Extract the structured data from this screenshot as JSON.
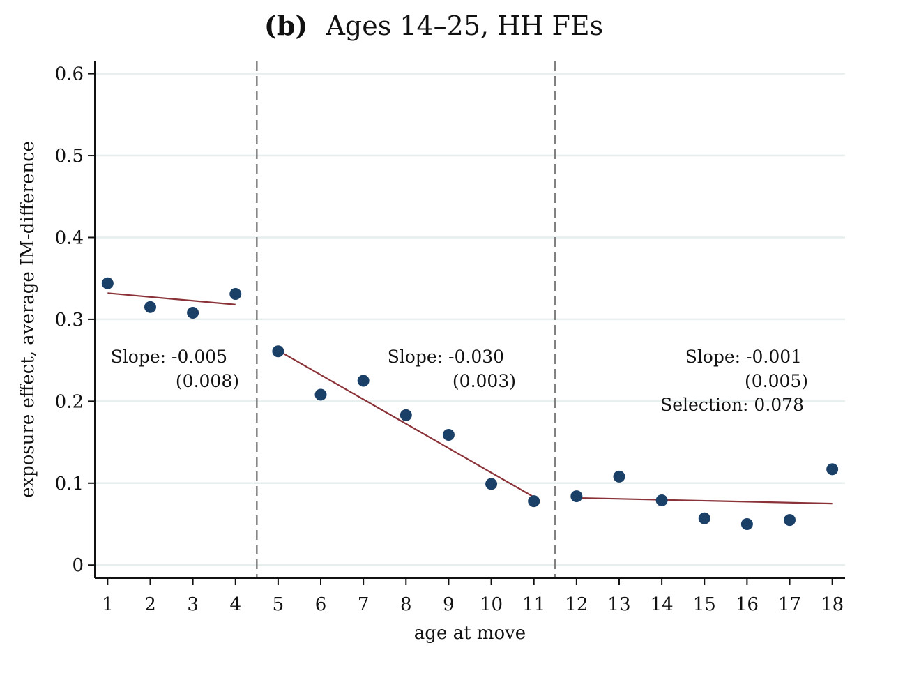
{
  "chart_data": {
    "type": "scatter",
    "title_prefix": "(b)",
    "title": "Ages 14–25, HH FEs",
    "xlabel": "age at move",
    "ylabel": "exposure effect, average IM-difference",
    "xticks": [
      "1",
      "2",
      "3",
      "4",
      "5",
      "6",
      "7",
      "8",
      "9",
      "10",
      "11",
      "12",
      "13",
      "14",
      "15",
      "16",
      "17",
      "18"
    ],
    "yticks": [
      "0",
      "0.1",
      "0.2",
      "0.3",
      "0.4",
      "0.5",
      "0.6"
    ],
    "xlim": [
      0.7,
      18.3
    ],
    "ylim": [
      -0.016,
      0.615
    ],
    "grid": true,
    "colors": {
      "points": "#1b4068",
      "fit": "#8a3238",
      "vline": "#808080",
      "grid": "#e6eeee"
    },
    "points": [
      {
        "x": 1,
        "y": 0.344
      },
      {
        "x": 2,
        "y": 0.315
      },
      {
        "x": 3,
        "y": 0.308
      },
      {
        "x": 4,
        "y": 0.331
      },
      {
        "x": 5,
        "y": 0.261
      },
      {
        "x": 6,
        "y": 0.208
      },
      {
        "x": 7,
        "y": 0.225
      },
      {
        "x": 8,
        "y": 0.183
      },
      {
        "x": 9,
        "y": 0.159
      },
      {
        "x": 10,
        "y": 0.099
      },
      {
        "x": 11,
        "y": 0.078
      },
      {
        "x": 12,
        "y": 0.084
      },
      {
        "x": 13,
        "y": 0.108
      },
      {
        "x": 14,
        "y": 0.079
      },
      {
        "x": 15,
        "y": 0.057
      },
      {
        "x": 16,
        "y": 0.05
      },
      {
        "x": 17,
        "y": 0.055
      },
      {
        "x": 18,
        "y": 0.117
      }
    ],
    "fit_lines": [
      {
        "x1": 1,
        "y1": 0.332,
        "x2": 4,
        "y2": 0.318
      },
      {
        "x1": 5,
        "y1": 0.262,
        "x2": 11,
        "y2": 0.083
      },
      {
        "x1": 12,
        "y1": 0.082,
        "x2": 18,
        "y2": 0.075
      }
    ],
    "vlines": [
      4.5,
      11.5
    ],
    "annotations": [
      {
        "lines": [
          "Slope: -0.005",
          "(0.008)"
        ]
      },
      {
        "lines": [
          "Slope: -0.030",
          "(0.003)"
        ]
      },
      {
        "lines": [
          "Slope: -0.001",
          "(0.005)",
          "Selection: 0.078"
        ]
      }
    ]
  }
}
